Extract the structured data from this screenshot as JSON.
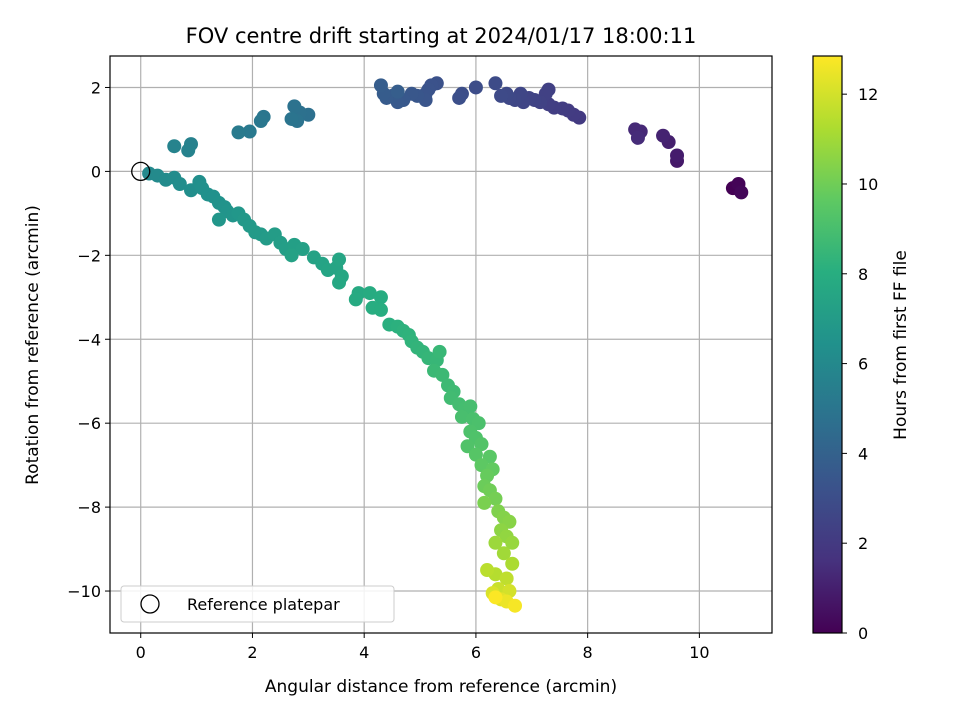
{
  "chart_data": {
    "type": "scatter",
    "title": "FOV centre drift starting at 2024/01/17 18:00:11",
    "xlabel": "Angular distance from reference (arcmin)",
    "ylabel": "Rotation from reference (arcmin)",
    "xlim": [
      -0.55,
      11.3
    ],
    "ylim": [
      -11.0,
      2.75
    ],
    "xticks": [
      0,
      2,
      4,
      6,
      8,
      10
    ],
    "yticks": [
      2,
      0,
      -2,
      -4,
      -6,
      -8,
      -10
    ],
    "xtick_labels": [
      "0",
      "2",
      "4",
      "6",
      "8",
      "10"
    ],
    "ytick_labels": [
      "2",
      "0",
      "−2",
      "−4",
      "−6",
      "−8",
      "−10"
    ],
    "grid": true,
    "colormap": "viridis",
    "colorbar": {
      "label": "Hours from first FF file",
      "min": 0,
      "max": 12.85,
      "ticks": [
        0,
        2,
        4,
        6,
        8,
        10,
        12
      ],
      "tick_labels": [
        "0",
        "2",
        "4",
        "6",
        "8",
        "10",
        "12"
      ]
    },
    "legend": {
      "position": "lower-left",
      "entries": [
        {
          "label": "Reference platepar",
          "marker": "hollow-circle"
        }
      ]
    },
    "reference_point": {
      "x": 0,
      "y": 0
    },
    "points": [
      {
        "x": 10.6,
        "y": -0.4,
        "c": 0.0
      },
      {
        "x": 10.7,
        "y": -0.3,
        "c": 0.1
      },
      {
        "x": 10.75,
        "y": -0.5,
        "c": 0.2
      },
      {
        "x": 9.6,
        "y": 0.25,
        "c": 0.8
      },
      {
        "x": 9.6,
        "y": 0.38,
        "c": 0.9
      },
      {
        "x": 9.45,
        "y": 0.7,
        "c": 1.0
      },
      {
        "x": 9.35,
        "y": 0.85,
        "c": 1.1
      },
      {
        "x": 8.95,
        "y": 0.95,
        "c": 1.3
      },
      {
        "x": 8.85,
        "y": 1.0,
        "c": 1.35
      },
      {
        "x": 8.9,
        "y": 0.8,
        "c": 1.4
      },
      {
        "x": 7.85,
        "y": 1.28,
        "c": 2.0
      },
      {
        "x": 7.75,
        "y": 1.35,
        "c": 2.05
      },
      {
        "x": 7.65,
        "y": 1.45,
        "c": 2.1
      },
      {
        "x": 7.55,
        "y": 1.5,
        "c": 2.15
      },
      {
        "x": 7.4,
        "y": 1.52,
        "c": 2.2
      },
      {
        "x": 7.3,
        "y": 1.6,
        "c": 2.25
      },
      {
        "x": 7.3,
        "y": 1.95,
        "c": 2.3
      },
      {
        "x": 7.25,
        "y": 1.85,
        "c": 2.35
      },
      {
        "x": 7.15,
        "y": 1.65,
        "c": 2.4
      },
      {
        "x": 7.05,
        "y": 1.7,
        "c": 2.45
      },
      {
        "x": 6.95,
        "y": 1.75,
        "c": 2.5
      },
      {
        "x": 6.85,
        "y": 1.65,
        "c": 2.55
      },
      {
        "x": 6.8,
        "y": 1.85,
        "c": 2.6
      },
      {
        "x": 6.7,
        "y": 1.7,
        "c": 2.65
      },
      {
        "x": 6.6,
        "y": 1.75,
        "c": 2.7
      },
      {
        "x": 6.55,
        "y": 1.85,
        "c": 2.75
      },
      {
        "x": 6.45,
        "y": 1.8,
        "c": 2.8
      },
      {
        "x": 6.35,
        "y": 2.1,
        "c": 2.85
      },
      {
        "x": 6.0,
        "y": 2.0,
        "c": 2.95
      },
      {
        "x": 5.75,
        "y": 1.85,
        "c": 3.0
      },
      {
        "x": 5.7,
        "y": 1.75,
        "c": 3.05
      },
      {
        "x": 5.3,
        "y": 2.1,
        "c": 3.15
      },
      {
        "x": 5.2,
        "y": 2.05,
        "c": 3.2
      },
      {
        "x": 5.15,
        "y": 1.95,
        "c": 3.25
      },
      {
        "x": 5.1,
        "y": 1.85,
        "c": 3.3
      },
      {
        "x": 5.1,
        "y": 1.7,
        "c": 3.35
      },
      {
        "x": 4.95,
        "y": 1.8,
        "c": 3.4
      },
      {
        "x": 4.85,
        "y": 1.85,
        "c": 3.45
      },
      {
        "x": 4.7,
        "y": 1.7,
        "c": 3.5
      },
      {
        "x": 4.6,
        "y": 1.65,
        "c": 3.55
      },
      {
        "x": 4.5,
        "y": 1.8,
        "c": 3.6
      },
      {
        "x": 4.4,
        "y": 1.75,
        "c": 3.65
      },
      {
        "x": 4.35,
        "y": 1.85,
        "c": 3.7
      },
      {
        "x": 4.3,
        "y": 2.05,
        "c": 3.75
      },
      {
        "x": 4.6,
        "y": 1.9,
        "c": 3.8
      },
      {
        "x": 3.0,
        "y": 1.35,
        "c": 4.7
      },
      {
        "x": 2.85,
        "y": 1.4,
        "c": 4.75
      },
      {
        "x": 2.75,
        "y": 1.55,
        "c": 4.8
      },
      {
        "x": 2.8,
        "y": 1.2,
        "c": 4.85
      },
      {
        "x": 2.7,
        "y": 1.25,
        "c": 4.9
      },
      {
        "x": 2.2,
        "y": 1.3,
        "c": 5.05
      },
      {
        "x": 2.15,
        "y": 1.2,
        "c": 5.1
      },
      {
        "x": 1.95,
        "y": 0.95,
        "c": 5.2
      },
      {
        "x": 1.75,
        "y": 0.93,
        "c": 5.25
      },
      {
        "x": 0.9,
        "y": 0.65,
        "c": 5.6
      },
      {
        "x": 0.85,
        "y": 0.5,
        "c": 5.65
      },
      {
        "x": 0.6,
        "y": 0.6,
        "c": 5.7
      },
      {
        "x": 0.15,
        "y": -0.05,
        "c": 6.0
      },
      {
        "x": 0.3,
        "y": -0.1,
        "c": 6.05
      },
      {
        "x": 0.45,
        "y": -0.2,
        "c": 6.1
      },
      {
        "x": 0.6,
        "y": -0.15,
        "c": 6.15
      },
      {
        "x": 0.7,
        "y": -0.3,
        "c": 6.2
      },
      {
        "x": 0.9,
        "y": -0.45,
        "c": 6.25
      },
      {
        "x": 1.05,
        "y": -0.25,
        "c": 6.3
      },
      {
        "x": 1.1,
        "y": -0.4,
        "c": 6.35
      },
      {
        "x": 1.2,
        "y": -0.55,
        "c": 6.4
      },
      {
        "x": 1.3,
        "y": -0.6,
        "c": 6.45
      },
      {
        "x": 1.4,
        "y": -0.75,
        "c": 6.5
      },
      {
        "x": 1.5,
        "y": -0.85,
        "c": 6.55
      },
      {
        "x": 1.55,
        "y": -0.95,
        "c": 6.6
      },
      {
        "x": 1.65,
        "y": -1.05,
        "c": 6.65
      },
      {
        "x": 1.4,
        "y": -1.15,
        "c": 6.7
      },
      {
        "x": 1.75,
        "y": -1.0,
        "c": 6.75
      },
      {
        "x": 1.85,
        "y": -1.15,
        "c": 6.8
      },
      {
        "x": 1.95,
        "y": -1.3,
        "c": 6.85
      },
      {
        "x": 2.05,
        "y": -1.45,
        "c": 6.9
      },
      {
        "x": 2.15,
        "y": -1.5,
        "c": 6.95
      },
      {
        "x": 2.25,
        "y": -1.6,
        "c": 7.0
      },
      {
        "x": 2.4,
        "y": -1.5,
        "c": 7.05
      },
      {
        "x": 2.5,
        "y": -1.7,
        "c": 7.1
      },
      {
        "x": 2.6,
        "y": -1.85,
        "c": 7.15
      },
      {
        "x": 2.75,
        "y": -1.75,
        "c": 7.2
      },
      {
        "x": 2.9,
        "y": -1.85,
        "c": 7.25
      },
      {
        "x": 2.7,
        "y": -2.0,
        "c": 7.3
      },
      {
        "x": 3.1,
        "y": -2.05,
        "c": 7.35
      },
      {
        "x": 3.25,
        "y": -2.2,
        "c": 7.4
      },
      {
        "x": 3.35,
        "y": -2.35,
        "c": 7.45
      },
      {
        "x": 3.5,
        "y": -2.3,
        "c": 7.5
      },
      {
        "x": 3.55,
        "y": -2.1,
        "c": 7.55
      },
      {
        "x": 3.6,
        "y": -2.5,
        "c": 7.6
      },
      {
        "x": 3.55,
        "y": -2.65,
        "c": 7.65
      },
      {
        "x": 3.9,
        "y": -2.9,
        "c": 7.75
      },
      {
        "x": 3.85,
        "y": -3.05,
        "c": 7.8
      },
      {
        "x": 4.1,
        "y": -2.9,
        "c": 7.85
      },
      {
        "x": 4.3,
        "y": -3.0,
        "c": 7.9
      },
      {
        "x": 4.15,
        "y": -3.25,
        "c": 7.95
      },
      {
        "x": 4.3,
        "y": -3.3,
        "c": 8.0
      },
      {
        "x": 4.45,
        "y": -3.65,
        "c": 8.1
      },
      {
        "x": 4.6,
        "y": -3.7,
        "c": 8.15
      },
      {
        "x": 4.7,
        "y": -3.8,
        "c": 8.2
      },
      {
        "x": 4.8,
        "y": -3.9,
        "c": 8.25
      },
      {
        "x": 4.85,
        "y": -4.05,
        "c": 8.3
      },
      {
        "x": 4.95,
        "y": -4.2,
        "c": 8.35
      },
      {
        "x": 5.05,
        "y": -4.3,
        "c": 8.4
      },
      {
        "x": 5.15,
        "y": -4.45,
        "c": 8.45
      },
      {
        "x": 5.3,
        "y": -4.5,
        "c": 8.5
      },
      {
        "x": 5.35,
        "y": -4.3,
        "c": 8.55
      },
      {
        "x": 5.25,
        "y": -4.75,
        "c": 8.6
      },
      {
        "x": 5.4,
        "y": -4.85,
        "c": 8.65
      },
      {
        "x": 5.5,
        "y": -5.1,
        "c": 8.7
      },
      {
        "x": 5.6,
        "y": -5.25,
        "c": 8.75
      },
      {
        "x": 5.55,
        "y": -5.4,
        "c": 8.8
      },
      {
        "x": 5.7,
        "y": -5.55,
        "c": 8.85
      },
      {
        "x": 5.8,
        "y": -5.65,
        "c": 8.9
      },
      {
        "x": 5.9,
        "y": -5.6,
        "c": 8.95
      },
      {
        "x": 5.75,
        "y": -5.85,
        "c": 9.0
      },
      {
        "x": 5.95,
        "y": -5.9,
        "c": 9.05
      },
      {
        "x": 6.05,
        "y": -6.0,
        "c": 9.1
      },
      {
        "x": 5.9,
        "y": -6.2,
        "c": 9.15
      },
      {
        "x": 6.0,
        "y": -6.35,
        "c": 9.2
      },
      {
        "x": 5.85,
        "y": -6.55,
        "c": 9.25
      },
      {
        "x": 6.1,
        "y": -6.5,
        "c": 9.3
      },
      {
        "x": 6.0,
        "y": -6.75,
        "c": 9.4
      },
      {
        "x": 6.25,
        "y": -6.8,
        "c": 9.5
      },
      {
        "x": 6.1,
        "y": -7.0,
        "c": 9.6
      },
      {
        "x": 6.3,
        "y": -7.1,
        "c": 9.7
      },
      {
        "x": 6.2,
        "y": -7.25,
        "c": 9.8
      },
      {
        "x": 6.15,
        "y": -7.5,
        "c": 9.9
      },
      {
        "x": 6.25,
        "y": -7.6,
        "c": 10.0
      },
      {
        "x": 6.35,
        "y": -7.8,
        "c": 10.1
      },
      {
        "x": 6.15,
        "y": -7.9,
        "c": 10.2
      },
      {
        "x": 6.4,
        "y": -8.1,
        "c": 10.3
      },
      {
        "x": 6.5,
        "y": -8.25,
        "c": 10.4
      },
      {
        "x": 6.6,
        "y": -8.35,
        "c": 10.5
      },
      {
        "x": 6.45,
        "y": -8.55,
        "c": 10.6
      },
      {
        "x": 6.55,
        "y": -8.7,
        "c": 10.7
      },
      {
        "x": 6.65,
        "y": -8.85,
        "c": 10.8
      },
      {
        "x": 6.35,
        "y": -8.85,
        "c": 10.9
      },
      {
        "x": 6.5,
        "y": -9.1,
        "c": 11.0
      },
      {
        "x": 6.65,
        "y": -9.35,
        "c": 11.2
      },
      {
        "x": 6.35,
        "y": -9.6,
        "c": 11.4
      },
      {
        "x": 6.2,
        "y": -9.5,
        "c": 11.5
      },
      {
        "x": 6.55,
        "y": -9.7,
        "c": 11.6
      },
      {
        "x": 6.4,
        "y": -9.95,
        "c": 11.8
      },
      {
        "x": 6.6,
        "y": -10.0,
        "c": 12.0
      },
      {
        "x": 6.3,
        "y": -10.05,
        "c": 12.1
      },
      {
        "x": 6.45,
        "y": -10.2,
        "c": 12.3
      },
      {
        "x": 6.55,
        "y": -10.25,
        "c": 12.5
      },
      {
        "x": 6.7,
        "y": -10.35,
        "c": 12.7
      },
      {
        "x": 6.35,
        "y": -10.15,
        "c": 12.8
      }
    ]
  }
}
